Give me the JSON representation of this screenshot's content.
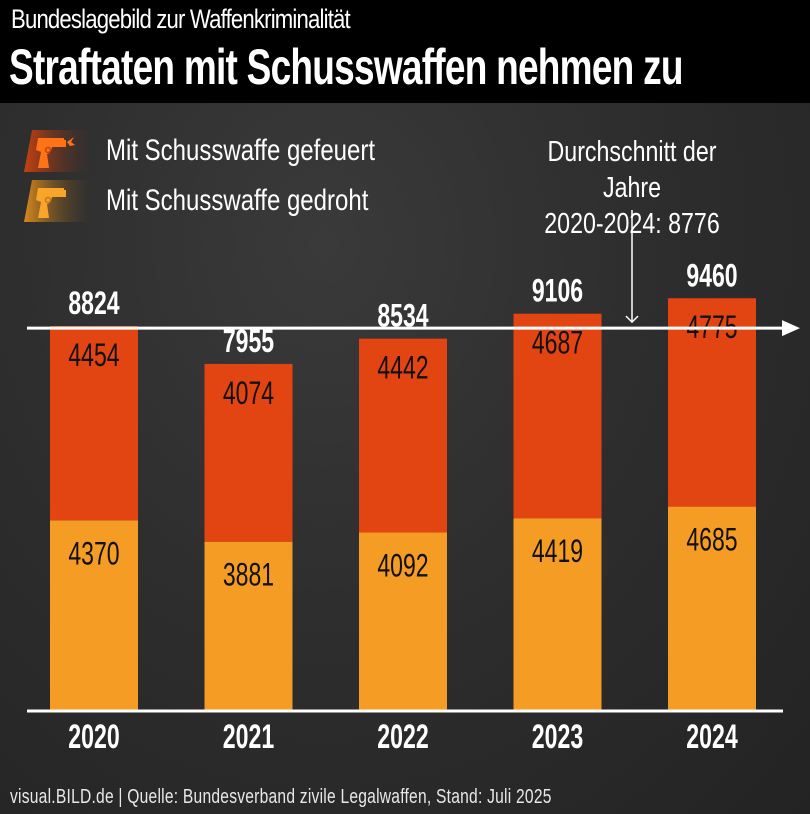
{
  "header": {
    "subtitle": "Bundeslagebild zur Waffenkriminalität",
    "title": "Straftaten mit Schusswaffen nehmen zu"
  },
  "legend": [
    {
      "label": "Mit Schusswaffe gefeuert",
      "icon": "pistol-firing-icon",
      "color": "#e34512"
    },
    {
      "label": "Mit Schusswaffe gedroht",
      "icon": "pistol-icon",
      "color": "#f59c25"
    }
  ],
  "annotation": {
    "line1": "Durchschnitt der Jahre",
    "line2": "2020-2024: 8776"
  },
  "footer": "visual.BILD.de | Quelle: Bundesverband zivile Legalwaffen, Stand: Juli 2025",
  "chart_data": {
    "type": "bar",
    "stacked": true,
    "title": "Straftaten mit Schusswaffen nehmen zu",
    "subtitle": "Bundeslagebild zur Waffenkriminalität",
    "categories": [
      "2020",
      "2021",
      "2022",
      "2023",
      "2024"
    ],
    "series": [
      {
        "name": "Mit Schusswaffe gedroht",
        "color": "#f59c25",
        "values": [
          4370,
          3881,
          4092,
          4419,
          4685
        ]
      },
      {
        "name": "Mit Schusswaffe gefeuert",
        "color": "#e34512",
        "values": [
          4454,
          4074,
          4442,
          4687,
          4775
        ]
      }
    ],
    "totals": [
      8824,
      7955,
      8534,
      9106,
      9460
    ],
    "reference_line": {
      "value": 8776,
      "label": "Durchschnitt der Jahre 2020-2024: 8776"
    },
    "xlabel": "",
    "ylabel": "",
    "ylim": [
      0,
      9460
    ],
    "grid": false,
    "legend_position": "top-left"
  }
}
